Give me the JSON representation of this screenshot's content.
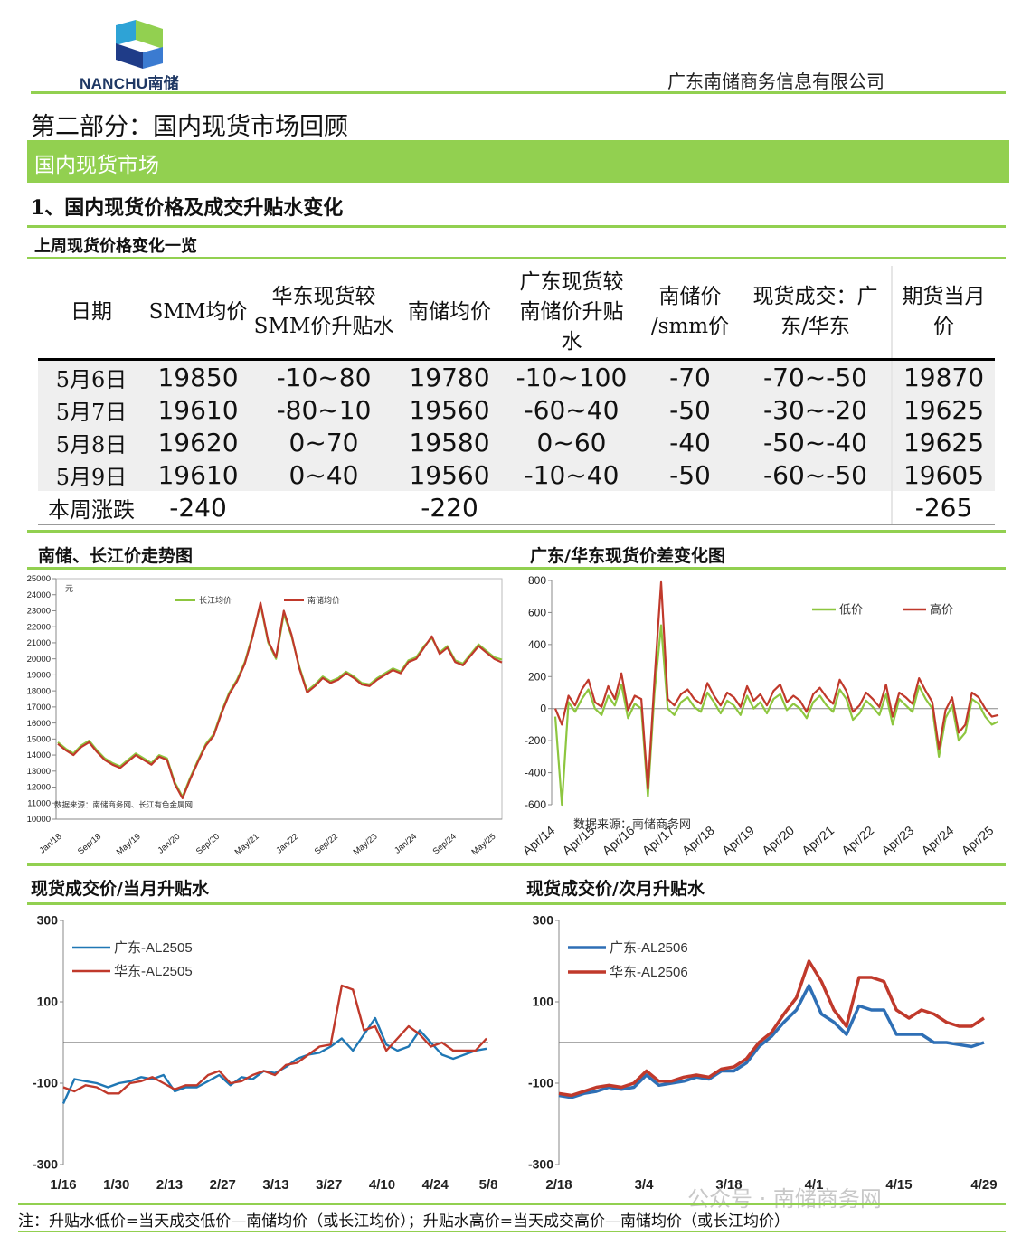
{
  "header": {
    "logo_text": "NANCHU南储",
    "company": "广东南储商务信息有限公司"
  },
  "section_title": "第二部分：国内现货市场回顾",
  "band_title": "国内现货市场",
  "subsection_title": "1、国内现货价格及成交升贴水变化",
  "table_title": "上周现货价格变化一览",
  "table": {
    "headers": [
      "日期",
      "SMM均价",
      "华东现货较SMM价升贴水",
      "南储均价",
      "广东现货较南储价升贴水",
      "南储价/smm价",
      "现货成交：广东/华东",
      "期货当月价"
    ],
    "header_lines": [
      [
        "日期"
      ],
      [
        "SMM均价"
      ],
      [
        "华东现货较",
        "SMM价升贴水"
      ],
      [
        "南储均价"
      ],
      [
        "广东现货较",
        "南储价升贴",
        "水"
      ],
      [
        "南储价",
        "/smm价"
      ],
      [
        "现货成交：广",
        "东/华东"
      ],
      [
        "期货当月",
        "价"
      ]
    ],
    "rows": [
      [
        "5月6日",
        "19850",
        "-10~80",
        "19780",
        "-10~100",
        "-70",
        "-70~-50",
        "19870"
      ],
      [
        "5月7日",
        "19610",
        "-80~10",
        "19560",
        "-60~40",
        "-50",
        "-30~-20",
        "19625"
      ],
      [
        "5月8日",
        "19620",
        "0~70",
        "19580",
        "0~60",
        "-40",
        "-50~-40",
        "19625"
      ],
      [
        "5月9日",
        "19610",
        "0~40",
        "19560",
        "-10~40",
        "-50",
        "-60~-50",
        "19605"
      ]
    ],
    "total_row": [
      "本周涨跌",
      "-240",
      "",
      "-220",
      "",
      "",
      "",
      "-265"
    ]
  },
  "note": "注：升贴水低价=当天成交低价—南储均价（或长江均价）；升贴水高价=当天成交高价—南储均价（或长江均价）",
  "watermark": "公众号 · 南储商务网",
  "colors": {
    "green": "#92d050",
    "blue": "#1f77b4",
    "red": "#c0392b",
    "lowgreen": "#8dc63f"
  },
  "chart_data": [
    {
      "title": "南储、长江价走势图",
      "type": "line",
      "unit_label": "元",
      "source": "数据来源：南储商务网、长江有色金属网",
      "ylim": [
        10000,
        25000
      ],
      "yticks": [
        10000,
        11000,
        12000,
        13000,
        14000,
        15000,
        16000,
        17000,
        18000,
        19000,
        20000,
        21000,
        22000,
        23000,
        24000,
        25000
      ],
      "xticks": [
        "Jan/18",
        "Sep/18",
        "May/19",
        "Jan/20",
        "Sep/20",
        "May/21",
        "Jan/22",
        "Sep/22",
        "May/23",
        "Jan/24",
        "Sep/24",
        "May/25"
      ],
      "series": [
        {
          "name": "长江均价",
          "color": "#8dc63f",
          "values": [
            14800,
            14400,
            14100,
            14600,
            14900,
            14300,
            13800,
            13500,
            13300,
            13700,
            14100,
            13800,
            13500,
            14000,
            13800,
            12300,
            11400,
            12600,
            13700,
            14700,
            15300,
            16700,
            17900,
            18700,
            19800,
            21500,
            23400,
            21000,
            20000,
            22800,
            21400,
            19500,
            18000,
            18400,
            18900,
            18600,
            18800,
            19200,
            18900,
            18500,
            18400,
            18800,
            19100,
            19400,
            19200,
            19900,
            20100,
            20800,
            21300,
            20400,
            20800,
            19900,
            19700,
            20300,
            20900,
            20500,
            20100,
            19950
          ]
        },
        {
          "name": "南储均价",
          "color": "#c0392b",
          "values": [
            14700,
            14300,
            14000,
            14500,
            14800,
            14200,
            13700,
            13400,
            13200,
            13600,
            14000,
            13700,
            13400,
            13900,
            13700,
            12200,
            11300,
            12500,
            13600,
            14600,
            15200,
            16600,
            17800,
            18600,
            19700,
            21400,
            23500,
            21100,
            20100,
            23000,
            21500,
            19400,
            17900,
            18300,
            18800,
            18500,
            18700,
            19100,
            18800,
            18400,
            18300,
            18700,
            19000,
            19300,
            19100,
            19800,
            20000,
            20700,
            21400,
            20300,
            20700,
            19800,
            19600,
            20200,
            20800,
            20400,
            20000,
            19780
          ]
        }
      ]
    },
    {
      "title": "广东/华东现货价差变化图",
      "type": "line",
      "source": "数据来源：南储商务网",
      "ylim": [
        -600,
        800
      ],
      "yticks": [
        -600,
        -400,
        -200,
        0,
        200,
        400,
        600,
        800
      ],
      "xticks": [
        "Apr/14",
        "Apr/15",
        "Apr/16",
        "Apr/17",
        "Apr/18",
        "Apr/19",
        "Apr/20",
        "Apr/21",
        "Apr/22",
        "Apr/23",
        "Apr/24",
        "Apr/25"
      ],
      "series": [
        {
          "name": "低价",
          "color": "#8dc63f",
          "values": [
            -50,
            -600,
            40,
            -20,
            60,
            120,
            0,
            -40,
            80,
            20,
            150,
            -60,
            30,
            0,
            -550,
            100,
            520,
            0,
            -40,
            40,
            70,
            10,
            -20,
            100,
            40,
            -30,
            50,
            20,
            -40,
            80,
            0,
            40,
            -30,
            60,
            90,
            -10,
            30,
            0,
            -60,
            40,
            80,
            20,
            -20,
            120,
            60,
            -70,
            -30,
            50,
            10,
            -40,
            90,
            -100,
            60,
            20,
            -20,
            140,
            60,
            0,
            -300,
            -60,
            20,
            -200,
            -150,
            60,
            30,
            -50,
            -100,
            -80
          ]
        },
        {
          "name": "高价",
          "color": "#c0392b",
          "values": [
            0,
            -100,
            80,
            20,
            120,
            180,
            40,
            10,
            140,
            60,
            220,
            -10,
            80,
            60,
            -500,
            180,
            790,
            60,
            20,
            90,
            120,
            60,
            30,
            160,
            80,
            20,
            100,
            70,
            10,
            140,
            50,
            90,
            20,
            110,
            150,
            40,
            80,
            50,
            -20,
            90,
            130,
            70,
            30,
            180,
            110,
            -20,
            20,
            100,
            60,
            10,
            150,
            -50,
            100,
            70,
            30,
            190,
            110,
            40,
            -250,
            -10,
            70,
            -150,
            -100,
            100,
            70,
            0,
            -50,
            -40
          ]
        }
      ]
    },
    {
      "title": "现货成交价/当月升贴水",
      "type": "line",
      "ylim": [
        -300,
        300
      ],
      "yticks": [
        -300,
        -100,
        100,
        300
      ],
      "xticks": [
        "1/16",
        "1/30",
        "2/13",
        "2/27",
        "3/13",
        "3/27",
        "4/10",
        "4/24",
        "5/8"
      ],
      "series": [
        {
          "name": "广东-AL2505",
          "color": "#1f77b4",
          "values": [
            -150,
            -90,
            -95,
            -100,
            -110,
            -100,
            -95,
            -85,
            -90,
            -80,
            -120,
            -110,
            -110,
            -95,
            -80,
            -105,
            -85,
            -90,
            -70,
            -75,
            -60,
            -40,
            -30,
            -25,
            -10,
            10,
            -20,
            20,
            60,
            -5,
            -20,
            -10,
            30,
            0,
            -30,
            -40,
            -30,
            -20,
            -15
          ]
        },
        {
          "name": "华东-AL2505",
          "color": "#c0392b",
          "values": [
            -110,
            -120,
            -105,
            -110,
            -125,
            -125,
            -100,
            -95,
            -85,
            -100,
            -115,
            -105,
            -105,
            -80,
            -70,
            -100,
            -95,
            -80,
            -70,
            -80,
            -55,
            -50,
            -30,
            -10,
            -5,
            140,
            130,
            30,
            40,
            -20,
            10,
            40,
            20,
            -10,
            0,
            -20,
            -20,
            -20,
            10
          ]
        }
      ]
    },
    {
      "title": "现货成交价/次月升贴水",
      "type": "line",
      "ylim": [
        -300,
        300
      ],
      "yticks": [
        -300,
        -100,
        100,
        300
      ],
      "xticks": [
        "2/18",
        "3/4",
        "3/18",
        "4/1",
        "4/15",
        "4/29"
      ],
      "series": [
        {
          "name": "广东-AL2506",
          "color": "#2e6fb5",
          "values": [
            -130,
            -135,
            -125,
            -120,
            -110,
            -115,
            -110,
            -80,
            -105,
            -100,
            -95,
            -85,
            -90,
            -70,
            -70,
            -50,
            -10,
            15,
            50,
            80,
            140,
            70,
            50,
            20,
            90,
            80,
            80,
            20,
            20,
            20,
            0,
            0,
            -5,
            -10,
            0
          ]
        },
        {
          "name": "华东-AL2506",
          "color": "#c0392b",
          "values": [
            -125,
            -130,
            -120,
            -110,
            -105,
            -110,
            -100,
            -70,
            -95,
            -95,
            -85,
            -80,
            -85,
            -65,
            -60,
            -40,
            0,
            25,
            70,
            110,
            200,
            150,
            80,
            40,
            160,
            160,
            150,
            80,
            60,
            80,
            70,
            50,
            40,
            40,
            60
          ]
        }
      ]
    }
  ]
}
